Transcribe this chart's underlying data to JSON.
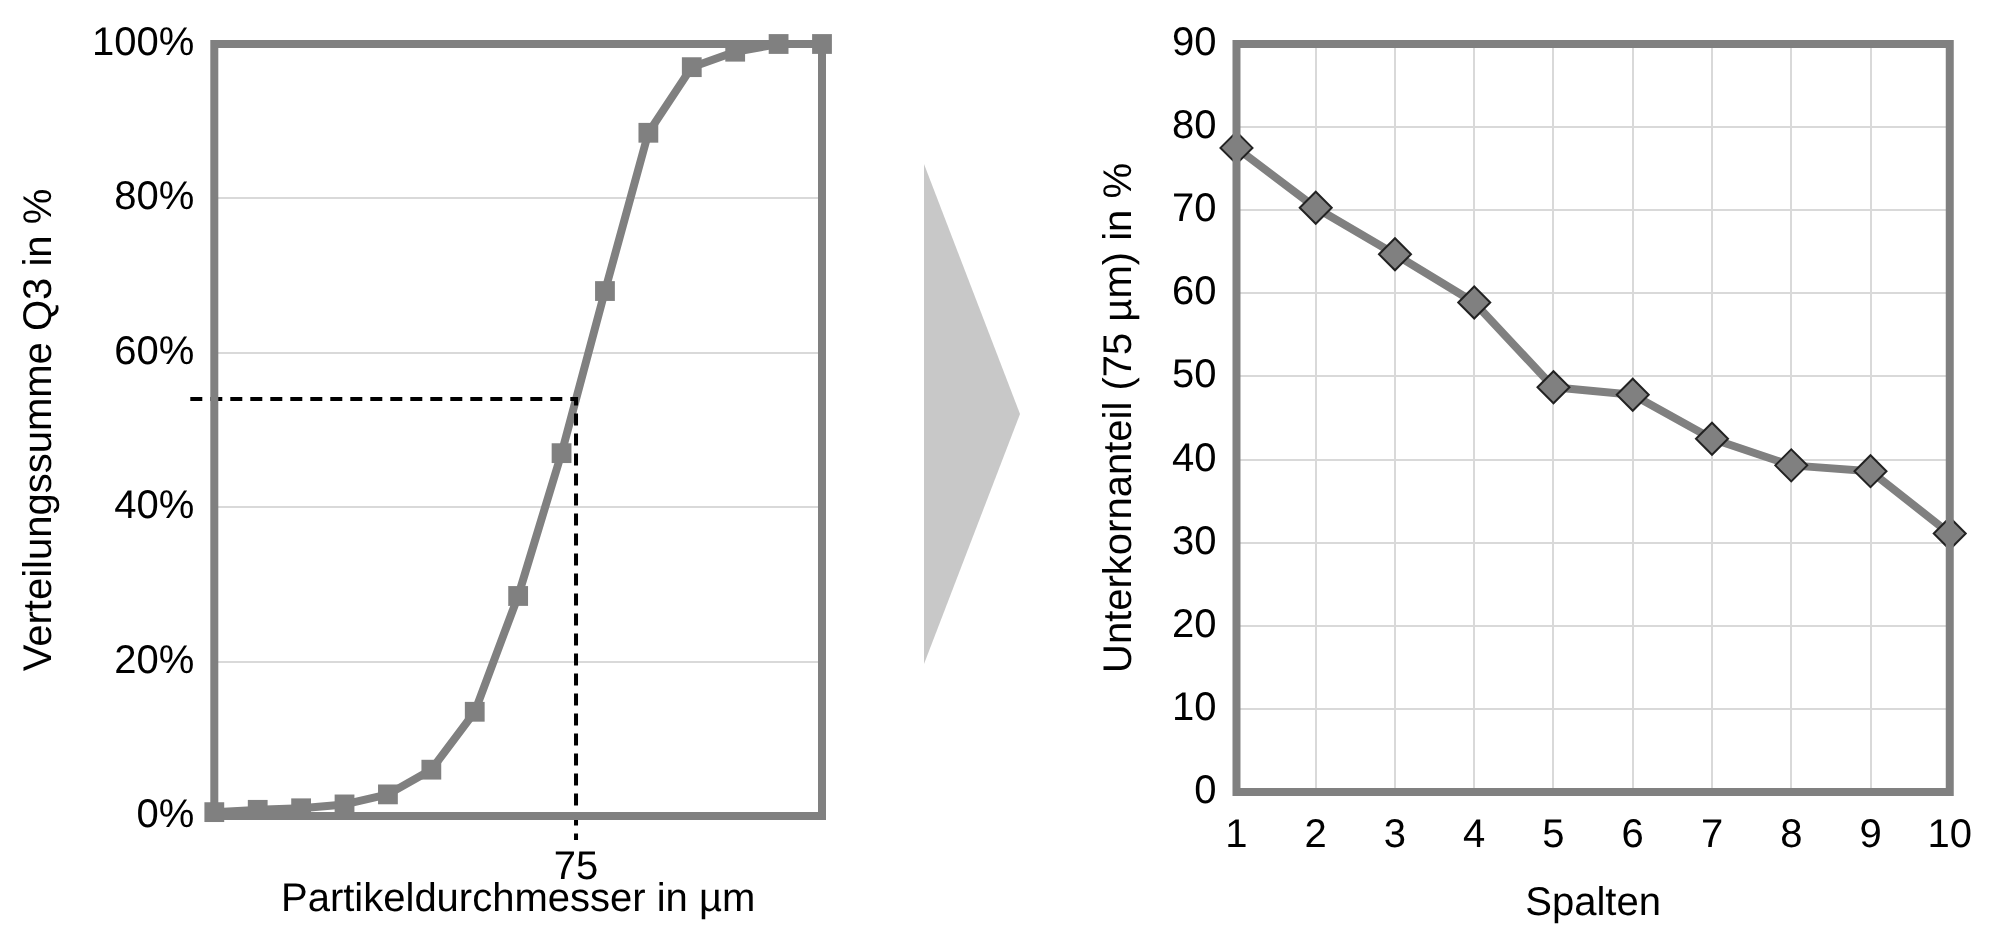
{
  "chart_data": [
    {
      "type": "line",
      "xlabel": "Partikeldurchmesser in µm",
      "ylabel": "Verteilungssumme Q3 in %",
      "categories": [
        null,
        null,
        null,
        null,
        null,
        null,
        null,
        null,
        null,
        null,
        null,
        null,
        null,
        null,
        null
      ],
      "series": [
        {
          "color": "#808080",
          "values": [
            0.5,
            0.8,
            1,
            1.5,
            2.8,
            6,
            13.5,
            28.5,
            47,
            68,
            88.5,
            97,
            99,
            100,
            100
          ]
        }
      ],
      "ylim": [
        0,
        100
      ],
      "yticks": [
        {
          "value": 0,
          "label": "0%"
        },
        {
          "value": 20,
          "label": "20%"
        },
        {
          "value": 40,
          "label": "40%"
        },
        {
          "value": 60,
          "label": "60%"
        },
        {
          "value": 80,
          "label": "80%"
        },
        {
          "value": 100,
          "label": "100%"
        }
      ],
      "ref_lines": [
        {
          "axis": "y",
          "value": 54,
          "color": "#000000",
          "line_style": "dashed"
        }
      ],
      "annotations": [
        "75"
      ],
      "tick_labels": "y",
      "grid": "y",
      "legend": false,
      "marker": "square"
    },
    {
      "type": "line",
      "xlabel": "Spalten",
      "ylabel": "Unterkornanteil (75 µm) in %",
      "categories": [
        "1",
        "2",
        "3",
        "4",
        "5",
        "6",
        "7",
        "8",
        "9",
        "10"
      ],
      "series": [
        {
          "color": "#808080",
          "values": [
            77.5,
            70.3,
            64.7,
            58.9,
            48.7,
            47.8,
            42.5,
            39.3,
            38.6,
            31.1
          ]
        }
      ],
      "ylim": [
        0,
        90
      ],
      "yticks": [
        0,
        10,
        20,
        30,
        40,
        50,
        60,
        70,
        80,
        90
      ],
      "grid": true,
      "legend": false,
      "marker": "diamond"
    }
  ]
}
